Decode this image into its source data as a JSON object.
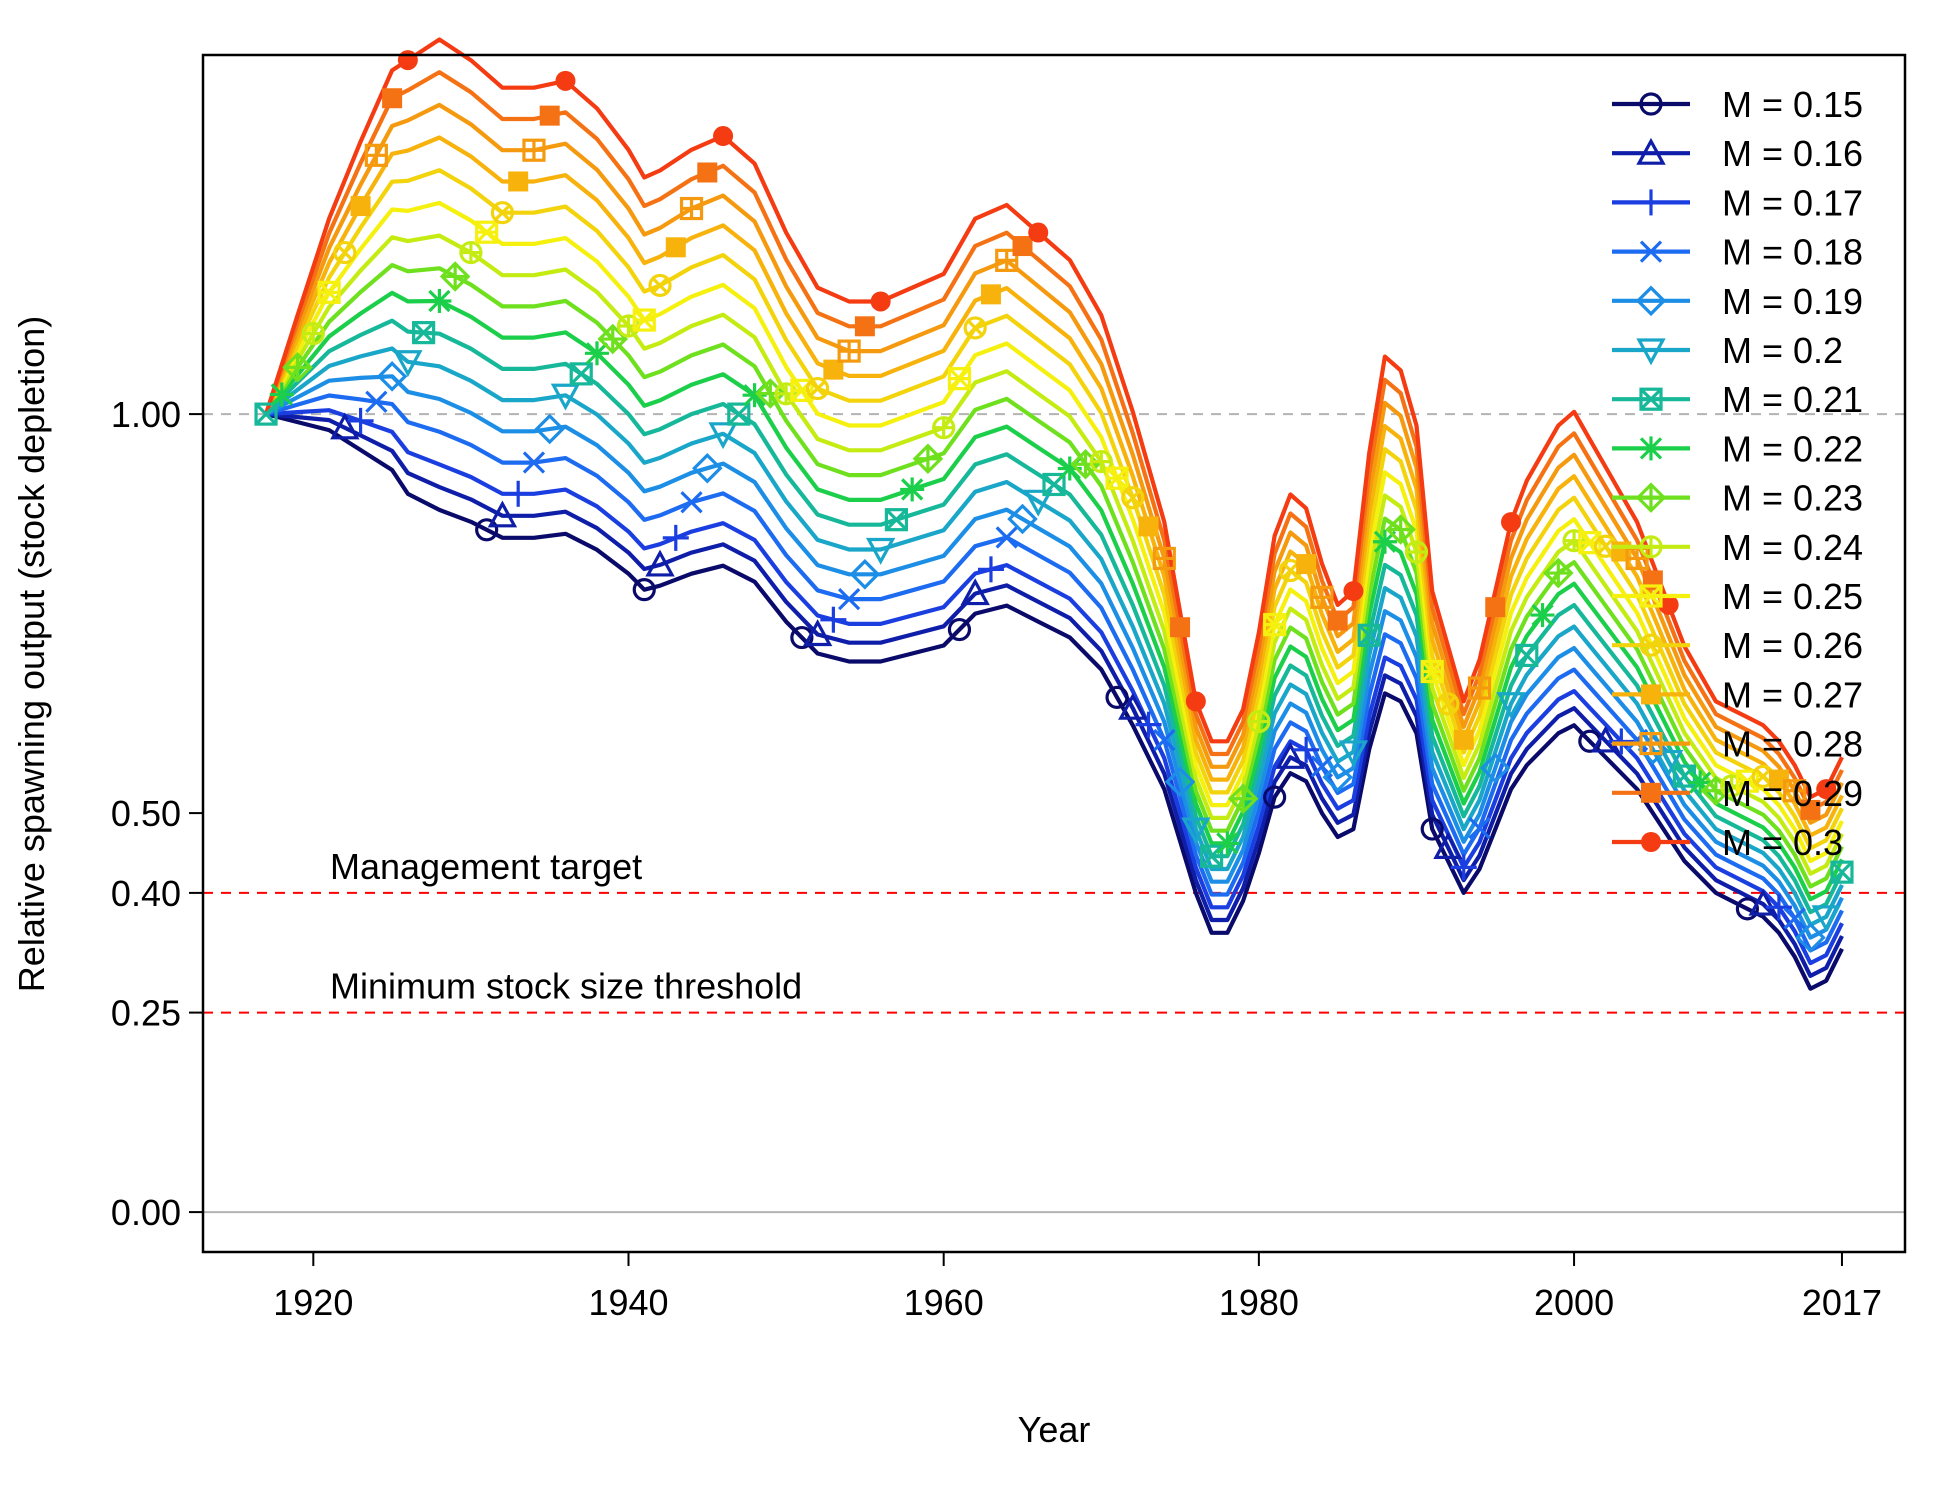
{
  "chart_data": {
    "type": "line",
    "title": "",
    "xlabel": "Year",
    "ylabel": "Relative spawning output (stock depletion)",
    "xlim": [
      1913,
      2021
    ],
    "ylim": [
      -0.05,
      1.45
    ],
    "x_ticks": [
      {
        "value": 1920,
        "label": "1920"
      },
      {
        "value": 1940,
        "label": "1940"
      },
      {
        "value": 1960,
        "label": "1960"
      },
      {
        "value": 1980,
        "label": "1980"
      },
      {
        "value": 2000,
        "label": "2000"
      },
      {
        "value": 2017,
        "label": "2017"
      }
    ],
    "y_ticks": [
      {
        "value": 0.0,
        "label": "0.00"
      },
      {
        "value": 0.25,
        "label": "0.25"
      },
      {
        "value": 0.4,
        "label": "0.40"
      },
      {
        "value": 0.5,
        "label": "0.50"
      },
      {
        "value": 1.0,
        "label": "1.00"
      }
    ],
    "reference_lines": [
      {
        "value": 1.0,
        "color": "#b3b3b3",
        "style": "dashed",
        "label": ""
      },
      {
        "value": 0.4,
        "color": "#ff0000",
        "style": "dashed",
        "label": "Management target"
      },
      {
        "value": 0.25,
        "color": "#ff0000",
        "style": "dashed",
        "label": "Minimum stock size threshold"
      },
      {
        "value": 0.0,
        "color": "#b3b3b3",
        "style": "solid",
        "label": ""
      }
    ],
    "legend_position": "top-right",
    "base_series": {
      "name": "M = 0.15",
      "x": [
        1917,
        1919,
        1921,
        1923,
        1925,
        1926,
        1928,
        1930,
        1932,
        1934,
        1936,
        1938,
        1940,
        1941,
        1942,
        1944,
        1946,
        1948,
        1950,
        1952,
        1954,
        1956,
        1958,
        1960,
        1962,
        1964,
        1966,
        1968,
        1970,
        1972,
        1974,
        1976,
        1977,
        1978,
        1979,
        1980,
        1981,
        1982,
        1983,
        1984,
        1985,
        1986,
        1987,
        1988,
        1989,
        1990,
        1991,
        1992,
        1993,
        1994,
        1995,
        1996,
        1997,
        1998,
        1999,
        2000,
        2001,
        2002,
        2003,
        2004,
        2005,
        2006,
        2007,
        2008,
        2009,
        2010,
        2011,
        2012,
        2013,
        2014,
        2015,
        2016,
        2017
      ],
      "values": [
        1.0,
        0.99,
        0.98,
        0.955,
        0.93,
        0.9,
        0.88,
        0.865,
        0.845,
        0.845,
        0.85,
        0.83,
        0.8,
        0.78,
        0.785,
        0.8,
        0.81,
        0.79,
        0.74,
        0.7,
        0.69,
        0.69,
        0.7,
        0.71,
        0.75,
        0.76,
        0.74,
        0.72,
        0.68,
        0.61,
        0.53,
        0.4,
        0.35,
        0.35,
        0.39,
        0.45,
        0.52,
        0.55,
        0.54,
        0.5,
        0.47,
        0.48,
        0.58,
        0.65,
        0.64,
        0.6,
        0.48,
        0.44,
        0.4,
        0.43,
        0.48,
        0.53,
        0.56,
        0.58,
        0.6,
        0.61,
        0.59,
        0.57,
        0.55,
        0.53,
        0.5,
        0.47,
        0.44,
        0.42,
        0.4,
        0.39,
        0.38,
        0.37,
        0.35,
        0.32,
        0.28,
        0.29,
        0.33
      ]
    },
    "series": [
      {
        "name": "M = 0.15",
        "color": "#0a0a6b",
        "marker": "circle-open",
        "offset": 0.0,
        "bump": 0.0,
        "marker_years": [
          1931,
          1941,
          1951,
          1961,
          1971,
          1981,
          1991,
          2001,
          2011
        ]
      },
      {
        "name": "M = 0.16",
        "color": "#0f1ea8",
        "marker": "triangle-open",
        "offset": 0.01,
        "bump": 0.01,
        "marker_years": [
          1922,
          1932,
          1942,
          1952,
          1962,
          1972,
          1982,
          1992,
          2002,
          2012
        ]
      },
      {
        "name": "M = 0.17",
        "color": "#1a3ee0",
        "marker": "plus",
        "offset": 0.02,
        "bump": 0.02,
        "marker_years": [
          1923,
          1933,
          1943,
          1953,
          1963,
          1973,
          1983,
          1993,
          2003,
          2013
        ]
      },
      {
        "name": "M = 0.18",
        "color": "#1c6bf0",
        "marker": "cross",
        "offset": 0.03,
        "bump": 0.04,
        "marker_years": [
          1924,
          1934,
          1944,
          1954,
          1964,
          1974,
          1984,
          1994,
          2004,
          2014
        ]
      },
      {
        "name": "M = 0.19",
        "color": "#1d8ee6",
        "marker": "diamond-open",
        "offset": 0.04,
        "bump": 0.06,
        "marker_years": [
          1925,
          1935,
          1945,
          1955,
          1965,
          1975,
          1985,
          1995,
          2005,
          2015
        ]
      },
      {
        "name": "M = 0.2",
        "color": "#1aa6c8",
        "marker": "triangle-down-open",
        "offset": 0.05,
        "bump": 0.08,
        "marker_years": [
          1926,
          1936,
          1946,
          1956,
          1966,
          1976,
          1986,
          1996,
          2006,
          2016
        ]
      },
      {
        "name": "M = 0.21",
        "color": "#17b89a",
        "marker": "square-cross",
        "offset": 0.06,
        "bump": 0.1,
        "marker_years": [
          1917,
          1927,
          1937,
          1947,
          1957,
          1967,
          1977,
          1987,
          1997,
          2007,
          2017
        ]
      },
      {
        "name": "M = 0.22",
        "color": "#1ccf4a",
        "marker": "asterisk",
        "offset": 0.07,
        "bump": 0.12,
        "marker_years": [
          1918,
          1928,
          1938,
          1948,
          1958,
          1968,
          1978,
          1988,
          1998,
          2008
        ]
      },
      {
        "name": "M = 0.23",
        "color": "#6fe01e",
        "marker": "diamond-plus",
        "offset": 0.08,
        "bump": 0.14,
        "marker_years": [
          1919,
          1929,
          1939,
          1949,
          1959,
          1969,
          1979,
          1989,
          1999,
          2009
        ]
      },
      {
        "name": "M = 0.24",
        "color": "#c4ec12",
        "marker": "circle-plus",
        "offset": 0.09,
        "bump": 0.16,
        "marker_years": [
          1920,
          1930,
          1940,
          1950,
          1960,
          1970,
          1980,
          1990,
          2000,
          2010
        ]
      },
      {
        "name": "M = 0.25",
        "color": "#f5f00e",
        "marker": "star-box",
        "offset": 0.1,
        "bump": 0.18,
        "marker_years": [
          1921,
          1931,
          1941,
          1951,
          1961,
          1971,
          1981,
          1991,
          2001,
          2011
        ]
      },
      {
        "name": "M = 0.26",
        "color": "#f2d30c",
        "marker": "circle-cross",
        "offset": 0.11,
        "bump": 0.2,
        "marker_years": [
          1922,
          1932,
          1942,
          1952,
          1962,
          1972,
          1982,
          1992,
          2002,
          2012
        ]
      },
      {
        "name": "M = 0.27",
        "color": "#f7b20c",
        "marker": "square-filled",
        "offset": 0.12,
        "bump": 0.22,
        "marker_years": [
          1923,
          1933,
          1943,
          1953,
          1963,
          1973,
          1983,
          1993,
          2003,
          2013
        ]
      },
      {
        "name": "M = 0.28",
        "color": "#f59a0f",
        "marker": "square-plus",
        "offset": 0.13,
        "bump": 0.24,
        "marker_years": [
          1924,
          1934,
          1944,
          1954,
          1964,
          1974,
          1984,
          1994,
          2004,
          2014
        ]
      },
      {
        "name": "M = 0.29",
        "color": "#f57214",
        "marker": "square-filled",
        "offset": 0.14,
        "bump": 0.26,
        "marker_years": [
          1925,
          1935,
          1945,
          1955,
          1965,
          1975,
          1985,
          1995,
          2005,
          2015
        ]
      },
      {
        "name": "M = 0.3",
        "color": "#f43b12",
        "marker": "circle-filled",
        "offset": 0.15,
        "bump": 0.28,
        "marker_years": [
          1926,
          1936,
          1946,
          1956,
          1966,
          1976,
          1986,
          1996,
          2006,
          2016
        ]
      }
    ]
  }
}
